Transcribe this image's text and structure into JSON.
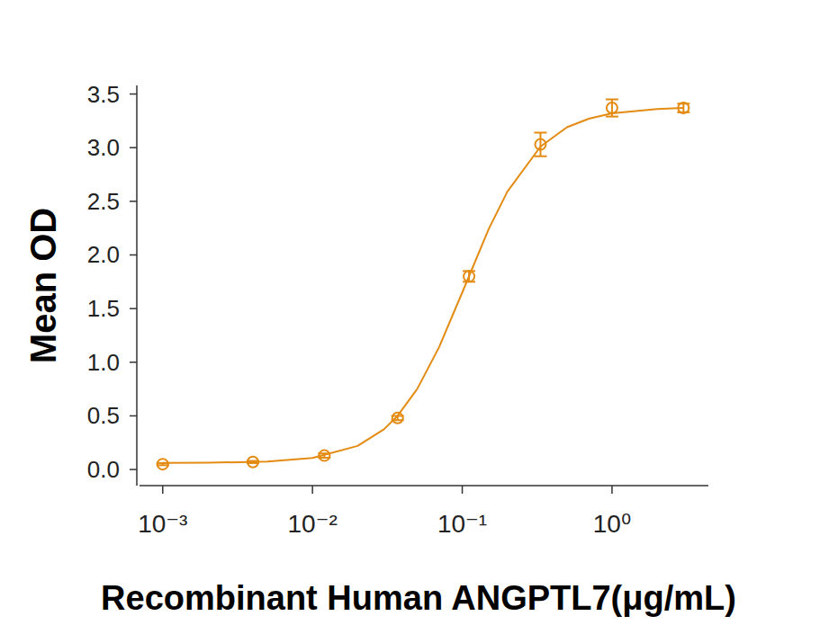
{
  "chart_data": {
    "type": "scatter",
    "x_label": "Recombinant Human ANGPTL7(μg/mL)",
    "y_label": "Mean OD",
    "log": "x",
    "grid": false,
    "color": "#e38b12",
    "xlim": [
      0.0007,
      4.4
    ],
    "xticks": [
      {
        "value": 0.001,
        "label": "10⁻³"
      },
      {
        "value": 0.01,
        "label": "10⁻²"
      },
      {
        "value": 0.1,
        "label": "10⁻¹"
      },
      {
        "value": 1,
        "label": "10⁰"
      }
    ],
    "ylim": [
      -0.15,
      3.58
    ],
    "yticks": [
      {
        "value": 0,
        "label": "0.0"
      },
      {
        "value": 0.5,
        "label": "0.5"
      },
      {
        "value": 1,
        "label": "1.0"
      },
      {
        "value": 1.5,
        "label": "1.5"
      },
      {
        "value": 2,
        "label": "2.0"
      },
      {
        "value": 2.5,
        "label": "2.5"
      },
      {
        "value": 3,
        "label": "3.0"
      },
      {
        "value": 3.5,
        "label": "3.5"
      }
    ],
    "series": [
      {
        "type": "scatter",
        "marker": "open-circle",
        "color": "#e38b12",
        "x": [
          0.001,
          0.004,
          0.012,
          0.037,
          0.111,
          0.333,
          1.0,
          3.0
        ],
        "values": [
          0.05,
          0.07,
          0.13,
          0.48,
          1.8,
          3.03,
          3.37,
          3.37
        ],
        "errors": [
          0.01,
          0.01,
          0.02,
          0.02,
          0.05,
          0.11,
          0.08,
          0.04
        ]
      },
      {
        "type": "line",
        "line_style": "solid",
        "color": "#e38b12",
        "x": [
          0.001,
          0.002,
          0.005,
          0.01,
          0.02,
          0.03,
          0.037,
          0.05,
          0.07,
          0.1,
          0.15,
          0.2,
          0.333,
          0.5,
          0.7,
          1,
          2,
          3
        ],
        "values": [
          0.061,
          0.063,
          0.074,
          0.107,
          0.22,
          0.375,
          0.5,
          0.75,
          1.14,
          1.65,
          2.24,
          2.59,
          3.01,
          3.19,
          3.27,
          3.32,
          3.36,
          3.37
        ]
      }
    ]
  }
}
